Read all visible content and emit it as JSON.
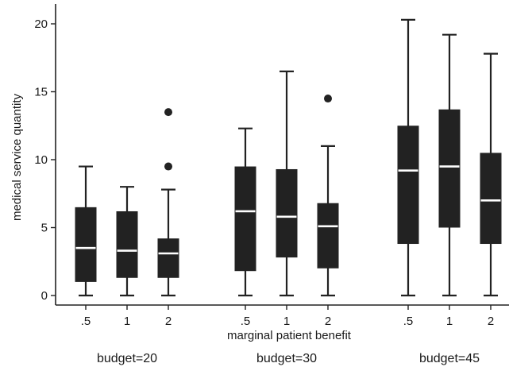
{
  "chart_data": {
    "type": "boxplot",
    "ylabel": "medical service quantity",
    "xlabel": "marginal patient benefit",
    "ylim": [
      0,
      21
    ],
    "yticks": [
      0,
      5,
      10,
      15,
      20
    ],
    "grid": false,
    "legend": "none",
    "colors": {
      "box": "#222222",
      "median": "#ffffff",
      "axis": "#222222"
    },
    "groups": [
      {
        "label": "budget=20",
        "boxes": [
          {
            "category": ".5",
            "min": 0,
            "q1": 1.0,
            "median": 3.5,
            "q3": 6.5,
            "max": 9.5,
            "outliers": []
          },
          {
            "category": "1",
            "min": 0,
            "q1": 1.3,
            "median": 3.3,
            "q3": 6.2,
            "max": 8.0,
            "outliers": []
          },
          {
            "category": "2",
            "min": 0,
            "q1": 1.3,
            "median": 3.1,
            "q3": 4.2,
            "max": 7.8,
            "outliers": [
              9.5,
              13.5
            ]
          }
        ]
      },
      {
        "label": "budget=30",
        "boxes": [
          {
            "category": ".5",
            "min": 0,
            "q1": 1.8,
            "median": 6.2,
            "q3": 9.5,
            "max": 12.3,
            "outliers": []
          },
          {
            "category": "1",
            "min": 0,
            "q1": 2.8,
            "median": 5.8,
            "q3": 9.3,
            "max": 16.5,
            "outliers": []
          },
          {
            "category": "2",
            "min": 0,
            "q1": 2.0,
            "median": 5.1,
            "q3": 6.8,
            "max": 11.0,
            "outliers": [
              14.5
            ]
          }
        ]
      },
      {
        "label": "budget=45",
        "boxes": [
          {
            "category": ".5",
            "min": 0,
            "q1": 3.8,
            "median": 9.2,
            "q3": 12.5,
            "max": 20.3,
            "outliers": []
          },
          {
            "category": "1",
            "min": 0,
            "q1": 5.0,
            "median": 9.5,
            "q3": 13.7,
            "max": 19.2,
            "outliers": []
          },
          {
            "category": "2",
            "min": 0,
            "q1": 3.8,
            "median": 7.0,
            "q3": 10.5,
            "max": 17.8,
            "outliers": []
          }
        ]
      }
    ]
  }
}
